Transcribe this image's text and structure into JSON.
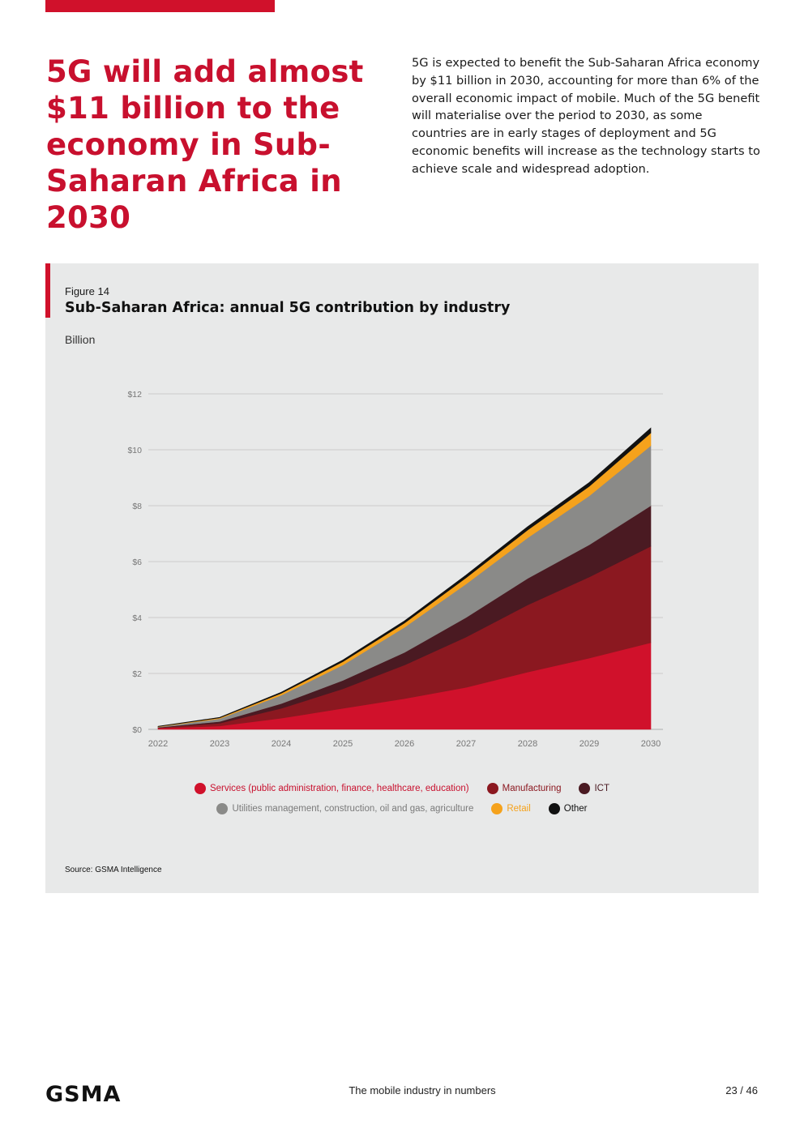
{
  "headline": "5G will add almost $11 billion to the economy in Sub-Saharan Africa in 2030",
  "intro": "5G is expected to benefit the Sub-Saharan Africa economy by $11 billion in 2030, accounting for more than 6% of the overall economic impact of mobile. Much of the 5G benefit will materialise over the period to 2030, as some countries are in early stages of deployment and 5G economic benefits will increase as the technology starts to achieve scale and widespread adoption.",
  "figure": {
    "label": "Figure 14",
    "title": "Sub-Saharan Africa: annual 5G contribution by industry",
    "unit": "Billion",
    "source": "Source: GSMA Intelligence"
  },
  "chart_data": {
    "type": "area",
    "stacked": true,
    "title": "Sub-Saharan Africa: annual 5G contribution by industry",
    "ylabel": "Billion",
    "xlabel": "",
    "ylim": [
      0,
      12
    ],
    "yticks": [
      0,
      2,
      4,
      6,
      8,
      10,
      12
    ],
    "ytick_labels": [
      "$0",
      "$2",
      "$4",
      "$6",
      "$8",
      "$10",
      "$12"
    ],
    "categories": [
      "2022",
      "2023",
      "2024",
      "2025",
      "2026",
      "2027",
      "2028",
      "2029",
      "2030"
    ],
    "grid": true,
    "legend_position": "bottom",
    "series": [
      {
        "name": "Services (public administration, finance, healthcare, education)",
        "color": "#d0112b",
        "values": [
          0.04,
          0.12,
          0.4,
          0.75,
          1.1,
          1.5,
          2.05,
          2.55,
          3.1
        ]
      },
      {
        "name": "Manufacturing",
        "color": "#8b1820",
        "values": [
          0.02,
          0.1,
          0.35,
          0.7,
          1.2,
          1.8,
          2.4,
          2.9,
          3.45
        ]
      },
      {
        "name": "ICT",
        "color": "#4a1a22",
        "values": [
          0.01,
          0.06,
          0.17,
          0.3,
          0.45,
          0.7,
          0.95,
          1.15,
          1.45
        ]
      },
      {
        "name": "Utilities management, construction, oil and gas, agriculture",
        "color": "#8a8a88",
        "values": [
          0.02,
          0.1,
          0.3,
          0.55,
          0.9,
          1.2,
          1.45,
          1.75,
          2.15
        ]
      },
      {
        "name": "Retail",
        "color": "#f5a21c",
        "values": [
          0.01,
          0.03,
          0.07,
          0.12,
          0.15,
          0.22,
          0.28,
          0.34,
          0.45
        ]
      },
      {
        "name": "Other",
        "color": "#111111",
        "values": [
          0.01,
          0.02,
          0.04,
          0.06,
          0.08,
          0.1,
          0.12,
          0.14,
          0.18
        ]
      }
    ]
  },
  "legend": {
    "row1": [
      {
        "label": "Services (public administration, finance, healthcare, education)",
        "color": "#d0112b",
        "text_color": "#c8102e"
      },
      {
        "label": "Manufacturing",
        "color": "#8b1820",
        "text_color": "#8b1820"
      },
      {
        "label": "ICT",
        "color": "#4a1a22",
        "text_color": "#4a1a22"
      }
    ],
    "row2": [
      {
        "label": "Utilities management, construction, oil and gas, agriculture",
        "color": "#8a8a88",
        "text_color": "#7a7a7a"
      },
      {
        "label": "Retail",
        "color": "#f5a21c",
        "text_color": "#f5a21c"
      },
      {
        "label": "Other",
        "color": "#111111",
        "text_color": "#111111"
      }
    ]
  },
  "footer": {
    "logo": "GSMA",
    "center": "The mobile industry in numbers",
    "page": "23 / 46"
  }
}
